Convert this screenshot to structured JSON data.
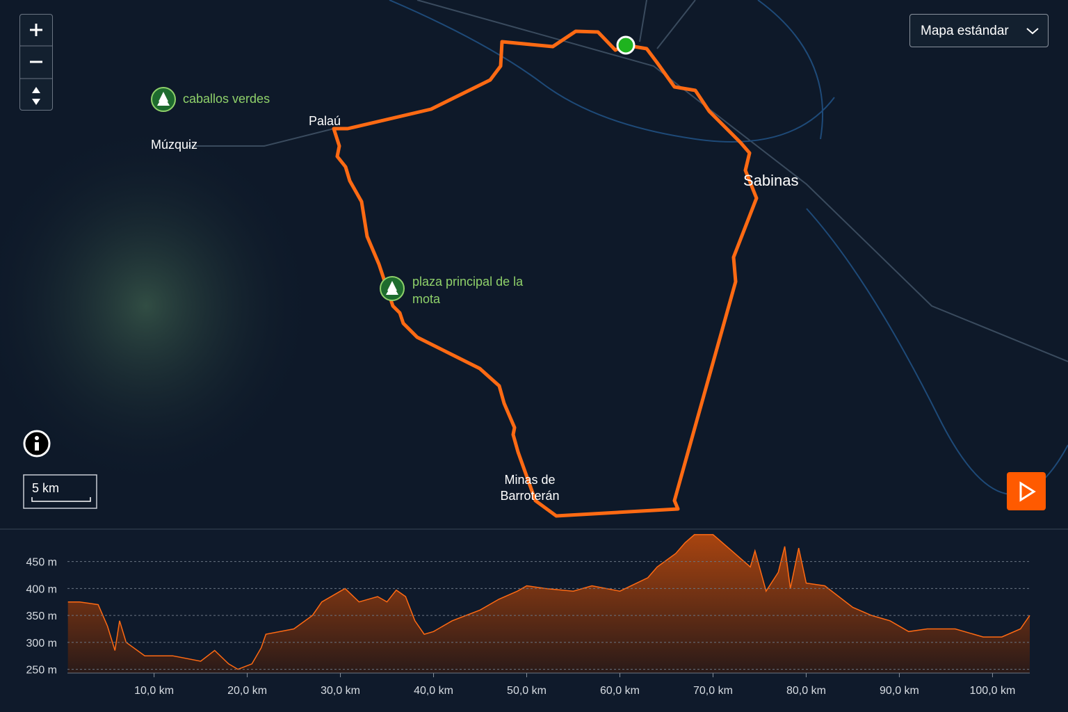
{
  "map": {
    "style_selector": "Mapa estándar",
    "scale": "5 km",
    "places": [
      "Palaú",
      "Múzquiz",
      "Sabinas",
      "Minas de Barroterán"
    ],
    "pois": [
      "caballos verdes",
      "plaza principal de la mota"
    ]
  },
  "chart_data": {
    "type": "area",
    "color": "#ff6a13",
    "grid": true,
    "x": [
      0.75,
      2,
      4,
      5,
      5.8,
      6.3,
      7,
      9,
      12,
      15,
      16.5,
      18,
      19,
      20.5,
      21.5,
      22,
      25,
      27,
      28,
      30,
      30.5,
      32,
      34,
      35,
      36,
      37,
      38,
      39,
      40,
      42,
      45,
      47,
      49,
      50,
      52,
      55,
      57,
      60,
      63,
      64,
      66,
      67,
      68,
      70,
      72,
      74,
      74.5,
      75.7,
      77,
      77.7,
      78.3,
      79.2,
      80,
      82,
      85,
      87,
      89,
      91,
      93,
      96,
      99,
      101,
      103,
      104
    ],
    "values": [
      375,
      375,
      370,
      330,
      285,
      340,
      300,
      275,
      275,
      265,
      285,
      260,
      250,
      260,
      290,
      315,
      325,
      350,
      375,
      395,
      400,
      375,
      385,
      375,
      397,
      385,
      340,
      315,
      320,
      340,
      360,
      380,
      395,
      405,
      400,
      395,
      405,
      395,
      420,
      440,
      465,
      485,
      500,
      500,
      470,
      440,
      470,
      395,
      430,
      478,
      400,
      475,
      410,
      405,
      365,
      350,
      340,
      320,
      325,
      325,
      310,
      310,
      325,
      350
    ],
    "xlim": [
      0.7,
      104
    ],
    "ylim": [
      243,
      505
    ],
    "xticks": [
      {
        "value": 10,
        "label": "10,0 km"
      },
      {
        "value": 20,
        "label": "20,0 km"
      },
      {
        "value": 30,
        "label": "30,0 km"
      },
      {
        "value": 40,
        "label": "40,0 km"
      },
      {
        "value": 50,
        "label": "50,0 km"
      },
      {
        "value": 60,
        "label": "60,0 km"
      },
      {
        "value": 70,
        "label": "70,0 km"
      },
      {
        "value": 80,
        "label": "80,0 km"
      },
      {
        "value": 90,
        "label": "90,0 km"
      },
      {
        "value": 100,
        "label": "100,0 km"
      }
    ],
    "yticks": [
      {
        "value": 250,
        "label": "250 m"
      },
      {
        "value": 300,
        "label": "300 m"
      },
      {
        "value": 350,
        "label": "350 m"
      },
      {
        "value": 400,
        "label": "400 m"
      },
      {
        "value": 450,
        "label": "450 m"
      }
    ]
  }
}
